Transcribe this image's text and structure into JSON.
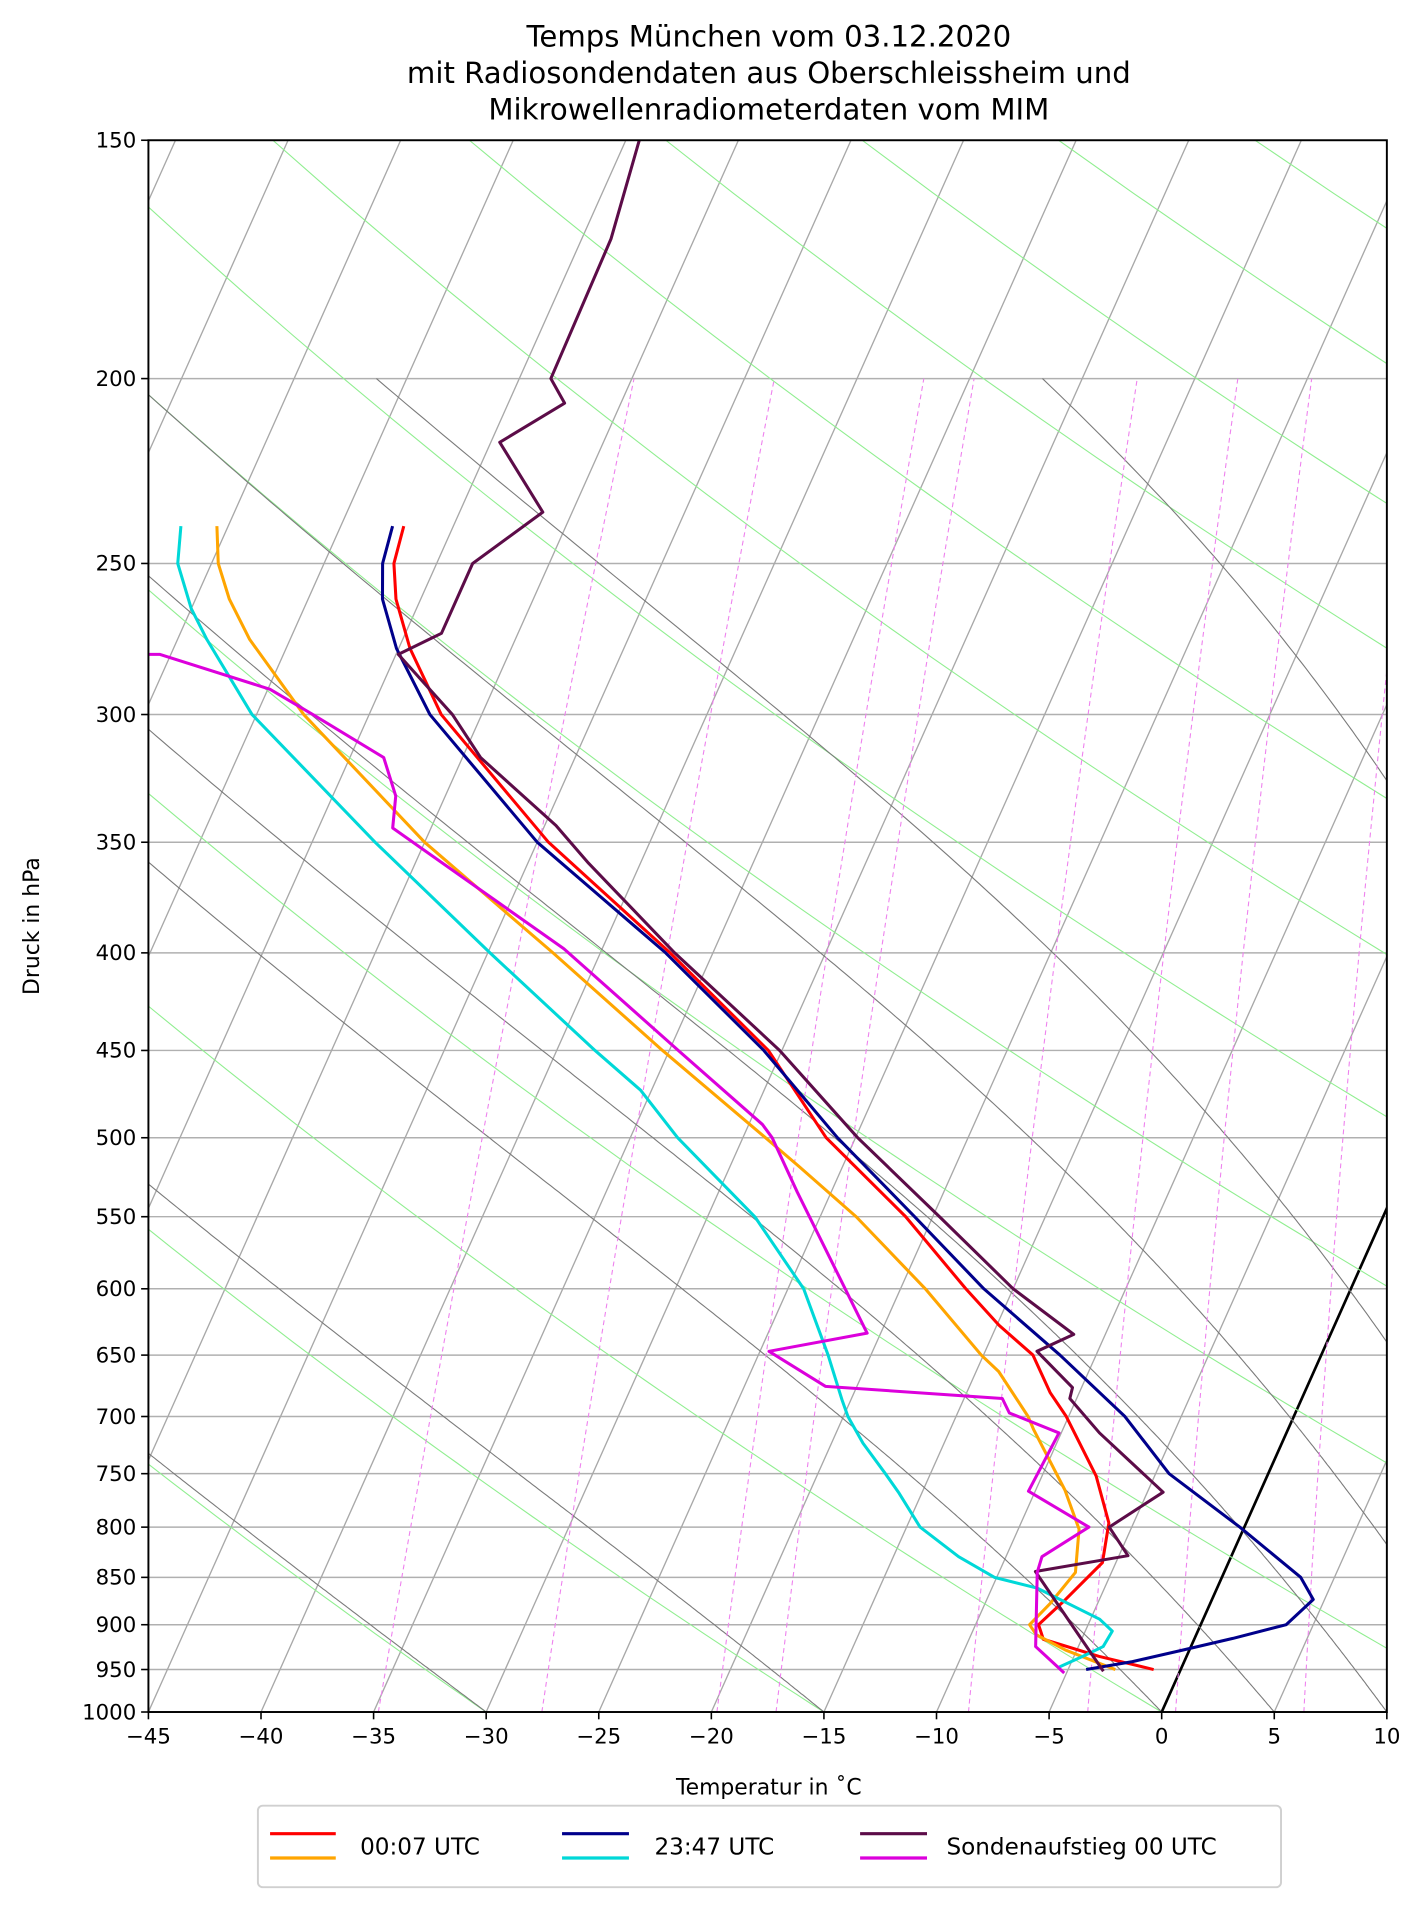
{
  "chart_data": {
    "type": "line",
    "subtype": "skew-T log-p diagram",
    "title": [
      "Temps München vom 03.12.2020",
      "mit Radiosondendaten aus Oberschleissheim und",
      "Mikrowellenradiometerdaten vom MIM"
    ],
    "xlabel": "Temperatur in ˚C",
    "ylabel": "Druck in hPa",
    "xlim": [
      -45,
      10
    ],
    "ylim": [
      1000,
      150
    ],
    "xticks": [
      -45,
      -40,
      -35,
      -30,
      -25,
      -20,
      -15,
      -10,
      -5,
      0,
      5,
      10
    ],
    "yticks": [
      150,
      200,
      250,
      300,
      350,
      400,
      450,
      500,
      550,
      600,
      650,
      700,
      750,
      800,
      850,
      900,
      950,
      1000
    ],
    "grid": true,
    "legend_position": "bottom-center",
    "background_lines": {
      "isotherm_step_c": 5,
      "highlighted_isotherm_c": 0,
      "dry_adiabats_t0_c": [
        -45,
        -30,
        -15,
        0,
        15,
        30,
        45,
        60,
        75,
        90,
        105,
        120,
        135,
        150,
        165,
        180,
        195
      ],
      "moist_adiabats_t0_c": [
        -30,
        -15,
        0,
        5,
        10,
        15,
        20,
        30
      ],
      "mixing_ratios_g_per_kg": [
        0.2,
        0.4,
        0.8,
        1,
        2,
        3,
        4,
        6
      ]
    },
    "legend": [
      {
        "label": "00:07 UTC",
        "lines": [
          {
            "color": "#ff0000",
            "points_p_hpa_t_c": [
              [
                239,
                -57.2
              ],
              [
                250,
                -56.9
              ],
              [
                261,
                -56.1
              ],
              [
                277,
                -54.5
              ],
              [
                300,
                -51.8
              ],
              [
                350,
                -44.5
              ],
              [
                400,
                -36.9
              ],
              [
                450,
                -30.6
              ],
              [
                500,
                -26.3
              ],
              [
                550,
                -21.2
              ],
              [
                600,
                -17.1
              ],
              [
                627,
                -14.9
              ],
              [
                650,
                -12.8
              ],
              [
                680,
                -11.3
              ],
              [
                700,
                -10.1
              ],
              [
                752,
                -7.6
              ],
              [
                796,
                -6.1
              ],
              [
                835,
                -5.6
              ],
              [
                873,
                -6.5
              ],
              [
                900,
                -7.2
              ],
              [
                916,
                -6.7
              ],
              [
                935,
                -3.9
              ],
              [
                950,
                -1.2
              ]
            ]
          },
          {
            "color": "#ffa500",
            "points_p_hpa_t_c": [
              [
                239,
                -65.5
              ],
              [
                250,
                -64.7
              ],
              [
                261,
                -63.5
              ],
              [
                274,
                -61.8
              ],
              [
                300,
                -57.9
              ],
              [
                350,
                -50.0
              ],
              [
                400,
                -42.1
              ],
              [
                450,
                -35.3
              ],
              [
                500,
                -29.0
              ],
              [
                518,
                -26.9
              ],
              [
                550,
                -23.4
              ],
              [
                600,
                -18.9
              ],
              [
                650,
                -15.1
              ],
              [
                663,
                -14.0
              ],
              [
                700,
                -11.8
              ],
              [
                711,
                -11.3
              ],
              [
                765,
                -8.7
              ],
              [
                802,
                -7.3
              ],
              [
                845,
                -6.6
              ],
              [
                877,
                -7.1
              ],
              [
                900,
                -7.6
              ],
              [
                911,
                -7.1
              ],
              [
                928,
                -5.5
              ],
              [
                950,
                -2.9
              ]
            ]
          }
        ]
      },
      {
        "label": "23:47 UTC",
        "lines": [
          {
            "color": "#00008b",
            "points_p_hpa_t_c": [
              [
                239,
                -57.7
              ],
              [
                250,
                -57.4
              ],
              [
                261,
                -56.7
              ],
              [
                277,
                -55.1
              ],
              [
                300,
                -52.3
              ],
              [
                350,
                -45.0
              ],
              [
                400,
                -37.1
              ],
              [
                450,
                -30.8
              ],
              [
                500,
                -25.8
              ],
              [
                550,
                -20.8
              ],
              [
                600,
                -16.3
              ],
              [
                650,
                -11.6
              ],
              [
                700,
                -7.5
              ],
              [
                750,
                -4.4
              ],
              [
                800,
                -0.2
              ],
              [
                850,
                3.5
              ],
              [
                873,
                4.5
              ],
              [
                900,
                3.8
              ],
              [
                915,
                1.7
              ],
              [
                928,
                -0.3
              ],
              [
                941,
                -2.3
              ],
              [
                950,
                -4.2
              ]
            ]
          },
          {
            "color": "#00d8d8",
            "points_p_hpa_t_c": [
              [
                239,
                -67.1
              ],
              [
                250,
                -66.5
              ],
              [
                264,
                -65.0
              ],
              [
                274,
                -63.7
              ],
              [
                300,
                -60.2
              ],
              [
                350,
                -52.2
              ],
              [
                400,
                -44.9
              ],
              [
                450,
                -38.3
              ],
              [
                472,
                -35.5
              ],
              [
                500,
                -32.9
              ],
              [
                550,
                -27.9
              ],
              [
                600,
                -24.3
              ],
              [
                650,
                -21.9
              ],
              [
                686,
                -20.4
              ],
              [
                700,
                -19.8
              ],
              [
                723,
                -18.6
              ],
              [
                750,
                -17.0
              ],
              [
                768,
                -16.0
              ],
              [
                800,
                -14.4
              ],
              [
                829,
                -12.1
              ],
              [
                850,
                -10.1
              ],
              [
                861,
                -8.0
              ],
              [
                894,
                -4.6
              ],
              [
                907,
                -3.8
              ],
              [
                924,
                -3.9
              ],
              [
                935,
                -4.6
              ],
              [
                948,
                -5.5
              ]
            ]
          }
        ]
      },
      {
        "label": "Sondenaufstieg 00 UTC",
        "lines": [
          {
            "color": "#5c0c48",
            "points_p_hpa_t_c": [
              [
                150,
                -54.4
              ],
              [
                169,
                -53.7
              ],
              [
                200,
                -53.6
              ],
              [
                206,
                -52.5
              ],
              [
                216,
                -54.6
              ],
              [
                235,
                -51.3
              ],
              [
                250,
                -53.4
              ],
              [
                272,
                -53.4
              ],
              [
                279,
                -54.9
              ],
              [
                300,
                -51.3
              ],
              [
                316,
                -49.2
              ],
              [
                343,
                -44.5
              ],
              [
                359,
                -42.3
              ],
              [
                400,
                -36.7
              ],
              [
                450,
                -30.1
              ],
              [
                500,
                -24.9
              ],
              [
                550,
                -19.7
              ],
              [
                600,
                -15.0
              ],
              [
                634,
                -11.4
              ],
              [
                647,
                -12.7
              ],
              [
                676,
                -10.4
              ],
              [
                685,
                -10.3
              ],
              [
                714,
                -8.3
              ],
              [
                767,
                -4.3
              ],
              [
                800,
                -6.0
              ],
              [
                828,
                -4.6
              ],
              [
                844,
                -8.4
              ],
              [
                952,
                -3.4
              ]
            ]
          },
          {
            "color": "#dc00dc",
            "points_p_hpa_t_c": [
              [
                279,
                -70.0
              ],
              [
                279,
                -65.5
              ],
              [
                291,
                -59.9
              ],
              [
                300,
                -57.5
              ],
              [
                316,
                -53.5
              ],
              [
                331,
                -52.2
              ],
              [
                344,
                -51.7
              ],
              [
                398,
                -41.7
              ],
              [
                450,
                -34.6
              ],
              [
                492,
                -29.4
              ],
              [
                500,
                -28.7
              ],
              [
                534,
                -26.5
              ],
              [
                633,
                -20.6
              ],
              [
                647,
                -24.6
              ],
              [
                675,
                -21.4
              ],
              [
                685,
                -13.3
              ],
              [
                697,
                -12.7
              ],
              [
                714,
                -10.1
              ],
              [
                766,
                -10.3
              ],
              [
                800,
                -6.9
              ],
              [
                829,
                -8.4
              ],
              [
                845,
                -8.3
              ],
              [
                924,
                -6.9
              ],
              [
                954,
                -5.1
              ]
            ]
          }
        ]
      }
    ],
    "colors": {
      "isotherm": "#a8a8a8",
      "highlight_isotherm": "#000000",
      "dry_adiabat": "#90ee90",
      "moist_adiabat": "#7a7a7a",
      "mixing_ratio": "#ee82ee",
      "pressure_grid": "#b0b0b0"
    }
  }
}
